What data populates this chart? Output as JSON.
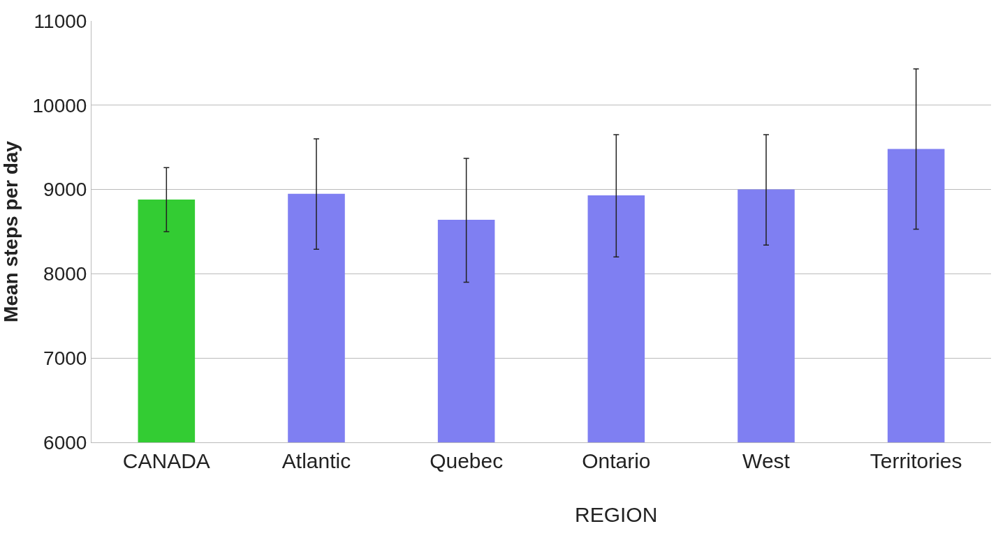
{
  "chart_data": {
    "type": "bar",
    "categories": [
      "CANADA",
      "Atlantic",
      "Quebec",
      "Ontario",
      "West",
      "Territories"
    ],
    "values": [
      8880,
      8950,
      8640,
      8930,
      9000,
      9480
    ],
    "errors": [
      [
        8500,
        9260
      ],
      [
        8290,
        9600
      ],
      [
        7900,
        9370
      ],
      [
        8200,
        9650
      ],
      [
        8340,
        9650
      ],
      [
        8530,
        10430
      ]
    ],
    "colors": [
      "#33cc33",
      "#7f7ff2",
      "#7f7ff2",
      "#7f7ff2",
      "#7f7ff2",
      "#7f7ff2"
    ],
    "xlabel": "REGION",
    "ylabel": "Mean steps per day",
    "ylim": [
      6000,
      11000
    ],
    "yticks": [
      6000,
      7000,
      8000,
      9000,
      10000,
      11000
    ],
    "grid": "y"
  }
}
